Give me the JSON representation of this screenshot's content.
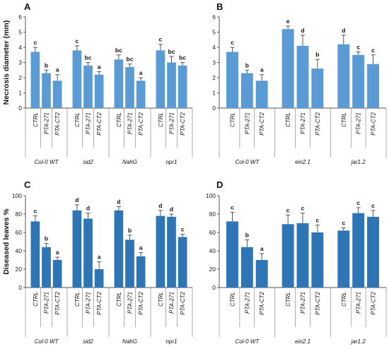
{
  "chart_data": [
    {
      "type": "bar",
      "panel": "A",
      "ylabel": "Necrosis diameter (mm)",
      "ylim": [
        0,
        6
      ],
      "yticks": [
        0,
        1,
        2,
        3,
        4,
        5,
        6
      ],
      "groups": [
        {
          "label": "Col-0 WT",
          "bars": [
            {
              "label": "CTRL",
              "value": 3.7,
              "error": 0.3,
              "sig": "c"
            },
            {
              "label": "PTA-271",
              "value": 2.3,
              "error": 0.2,
              "sig": "b"
            },
            {
              "label": "PTA-CT2",
              "value": 1.8,
              "error": 0.4,
              "sig": "a"
            }
          ]
        },
        {
          "label": "sid2",
          "bars": [
            {
              "label": "CTRL",
              "value": 3.8,
              "error": 0.3,
              "sig": "c"
            },
            {
              "label": "PTA-271",
              "value": 2.8,
              "error": 0.2,
              "sig": "bc"
            },
            {
              "label": "PTA-CT2",
              "value": 2.2,
              "error": 0.2,
              "sig": "a"
            }
          ]
        },
        {
          "label": "NahG",
          "bars": [
            {
              "label": "CTRL",
              "value": 3.2,
              "error": 0.3,
              "sig": "bc"
            },
            {
              "label": "PTA-271",
              "value": 2.7,
              "error": 0.2,
              "sig": "bc"
            },
            {
              "label": "PTA-CT2",
              "value": 1.8,
              "error": 0.2,
              "sig": "a"
            }
          ]
        },
        {
          "label": "npr1",
          "bars": [
            {
              "label": "CTRL",
              "value": 3.8,
              "error": 0.4,
              "sig": "c"
            },
            {
              "label": "PTA-271",
              "value": 3.0,
              "error": 0.4,
              "sig": "bc"
            },
            {
              "label": "PTA-CT2",
              "value": 2.8,
              "error": 0.2,
              "sig": "bc"
            }
          ]
        }
      ]
    },
    {
      "type": "bar",
      "panel": "B",
      "ylabel": "",
      "ylim": [
        0,
        6
      ],
      "yticks": [
        0,
        1,
        2,
        3,
        4,
        5,
        6
      ],
      "groups": [
        {
          "label": "Col-0 WT",
          "bars": [
            {
              "label": "CTRL",
              "value": 3.7,
              "error": 0.3,
              "sig": "c"
            },
            {
              "label": "PTA-271",
              "value": 2.3,
              "error": 0.2,
              "sig": "b"
            },
            {
              "label": "PTA-CT2",
              "value": 1.8,
              "error": 0.4,
              "sig": "a"
            }
          ]
        },
        {
          "label": "ein2.1",
          "bars": [
            {
              "label": "CTRL",
              "value": 5.2,
              "error": 0.2,
              "sig": "e"
            },
            {
              "label": "PTA-271",
              "value": 4.1,
              "error": 0.7,
              "sig": "d"
            },
            {
              "label": "PTA-CT2",
              "value": 2.6,
              "error": 0.6,
              "sig": "b"
            }
          ]
        },
        {
          "label": "jar1.2",
          "bars": [
            {
              "label": "CTRL",
              "value": 4.2,
              "error": 0.6,
              "sig": "d"
            },
            {
              "label": "PTA-271",
              "value": 3.5,
              "error": 0.2,
              "sig": "c"
            },
            {
              "label": "PTA-CT2",
              "value": 2.9,
              "error": 0.6,
              "sig": "c"
            }
          ]
        }
      ]
    },
    {
      "type": "bar",
      "panel": "C",
      "ylabel": "Diseased leaves %",
      "ylim": [
        0,
        100
      ],
      "yticks": [
        0,
        20,
        40,
        60,
        80,
        100
      ],
      "groups": [
        {
          "label": "Col-0 WT",
          "bars": [
            {
              "label": "CTRL",
              "value": 72,
              "error": 6,
              "sig": "c"
            },
            {
              "label": "PTA-271",
              "value": 44,
              "error": 4,
              "sig": "b"
            },
            {
              "label": "PTA-CT2",
              "value": 30,
              "error": 3,
              "sig": "a"
            }
          ]
        },
        {
          "label": "sid2",
          "bars": [
            {
              "label": "CTRL",
              "value": 84,
              "error": 6,
              "sig": "d"
            },
            {
              "label": "PTA-271",
              "value": 75,
              "error": 6,
              "sig": "d"
            },
            {
              "label": "PTA-CT2",
              "value": 20,
              "error": 8,
              "sig": "a"
            }
          ]
        },
        {
          "label": "NahG",
          "bars": [
            {
              "label": "CTRL",
              "value": 84,
              "error": 4,
              "sig": "d"
            },
            {
              "label": "PTA-271",
              "value": 52,
              "error": 5,
              "sig": "b"
            },
            {
              "label": "PTA-CT2",
              "value": 34,
              "error": 4,
              "sig": "a"
            }
          ]
        },
        {
          "label": "npr1",
          "bars": [
            {
              "label": "CTRL",
              "value": 78,
              "error": 6,
              "sig": "d"
            },
            {
              "label": "PTA-271",
              "value": 77,
              "error": 3,
              "sig": "d"
            },
            {
              "label": "PTA-CT2",
              "value": 55,
              "error": 3,
              "sig": "c"
            }
          ]
        }
      ]
    },
    {
      "type": "bar",
      "panel": "D",
      "ylabel": "",
      "ylim": [
        0,
        100
      ],
      "yticks": [
        0,
        20,
        40,
        60,
        80,
        100
      ],
      "groups": [
        {
          "label": "Col-0 WT",
          "bars": [
            {
              "label": "CTRL",
              "value": 72,
              "error": 10,
              "sig": "c"
            },
            {
              "label": "PTA-271",
              "value": 44,
              "error": 8,
              "sig": "b"
            },
            {
              "label": "PTA-CT2",
              "value": 30,
              "error": 7,
              "sig": "a"
            }
          ]
        },
        {
          "label": "ein2.1",
          "bars": [
            {
              "label": "CTRL",
              "value": 69,
              "error": 10,
              "sig": "c"
            },
            {
              "label": "PTA-271",
              "value": 70,
              "error": 11,
              "sig": "c"
            },
            {
              "label": "PTA-CT2",
              "value": 60,
              "error": 8,
              "sig": "c"
            }
          ]
        },
        {
          "label": "jar1.2",
          "bars": [
            {
              "label": "CTRL",
              "value": 62,
              "error": 3,
              "sig": "c"
            },
            {
              "label": "PTA-271",
              "value": 81,
              "error": 6,
              "sig": "c"
            },
            {
              "label": "PTA-CT2",
              "value": 77,
              "error": 7,
              "sig": "c"
            }
          ]
        }
      ]
    }
  ],
  "colors": {
    "row1_bar": "#5b9bd5",
    "row2_bar": "#2e75b6",
    "axis": "#555555"
  }
}
